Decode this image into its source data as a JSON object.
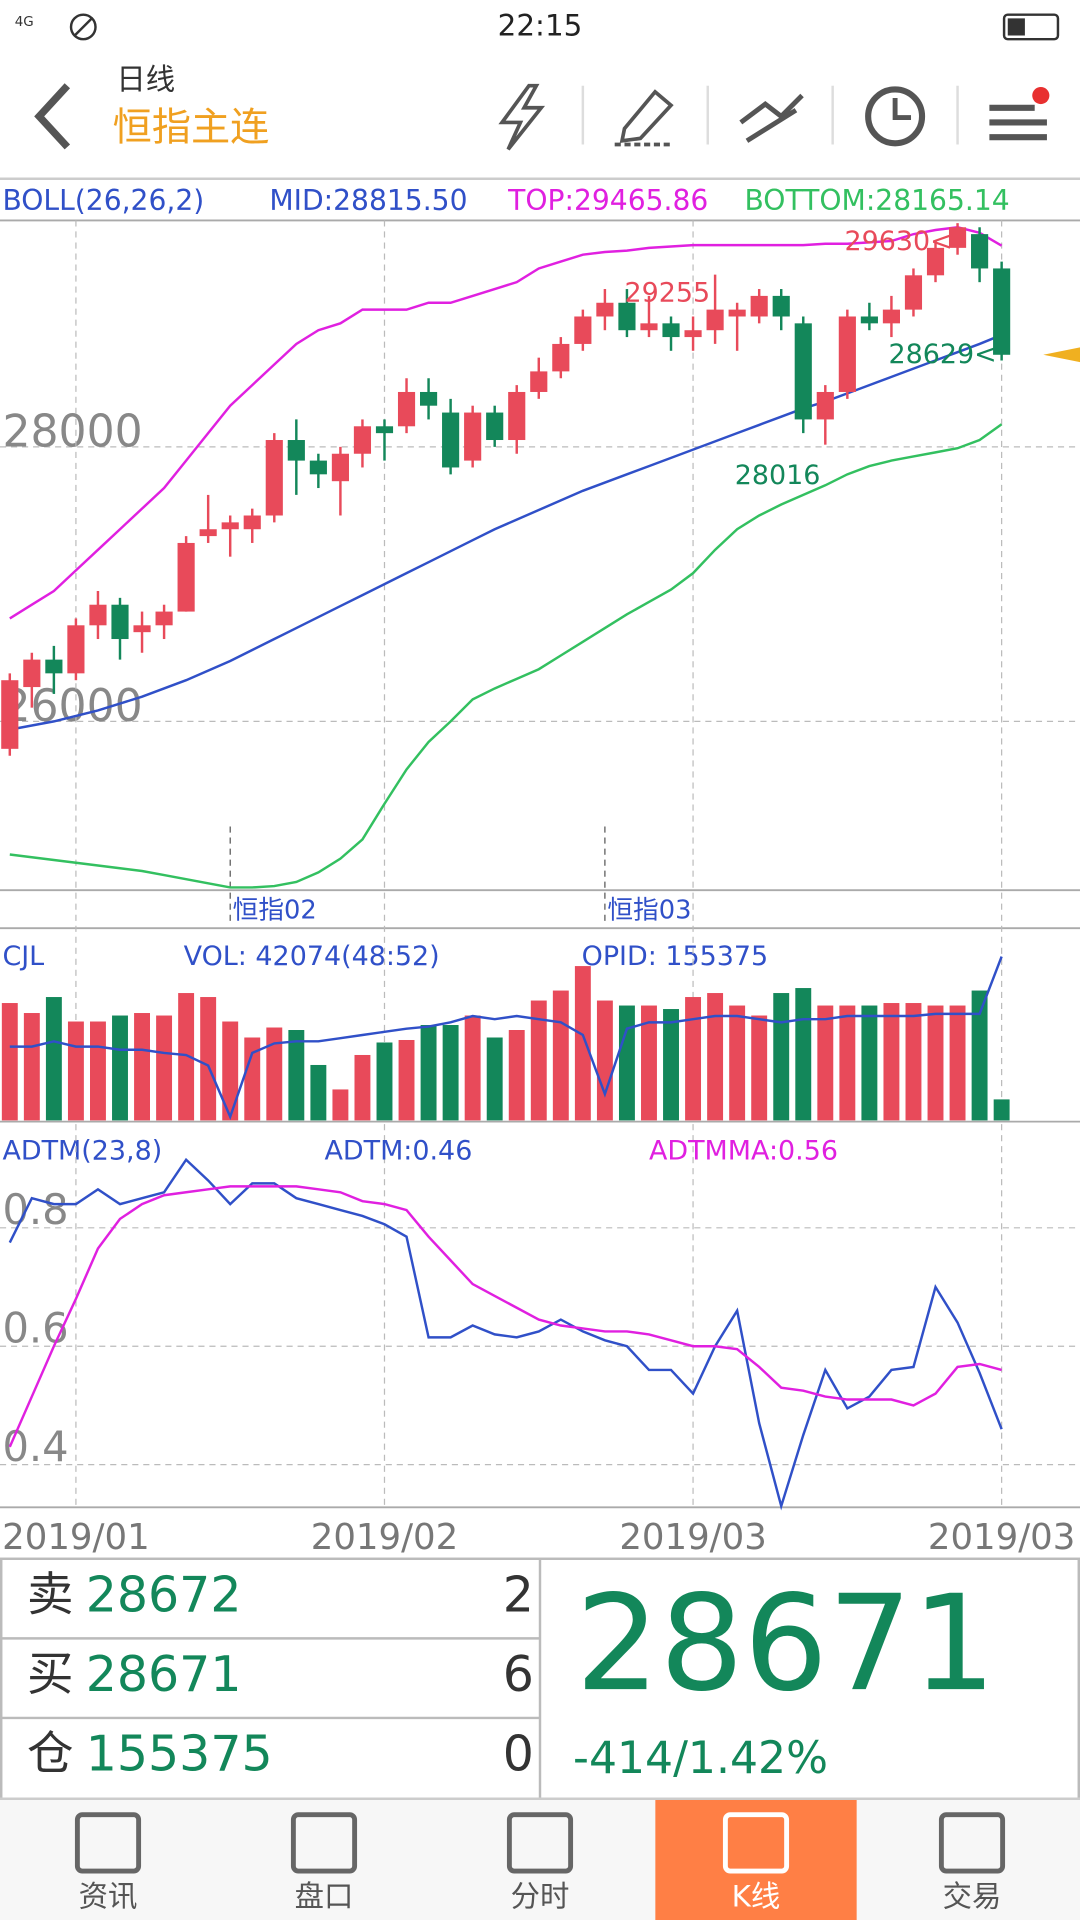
{
  "status_bar": {
    "network": "4G",
    "time": "22:15"
  },
  "header": {
    "period": "日线",
    "symbol": "恒指主连"
  },
  "price_chart": {
    "type": "candlestick",
    "indicator": "BOLL(26,26,2)",
    "up_color": "#e84a5a",
    "down_color": "#13875a",
    "ylim": [
      24770,
      29650
    ],
    "yticks": [
      26000,
      28000
    ],
    "grid": true,
    "categories": [
      null,
      null,
      null,
      "2019/01",
      null,
      null,
      null,
      null,
      null,
      null,
      null,
      null,
      null,
      null,
      null,
      null,
      null,
      "2019/02",
      null,
      null,
      null,
      null,
      null,
      null,
      null,
      null,
      null,
      null,
      null,
      null,
      null,
      "2019/03",
      null,
      null,
      null,
      null,
      null,
      null,
      null,
      null,
      null,
      null,
      null,
      null,
      null,
      "2019/03"
    ],
    "contracts": [
      null,
      null,
      null,
      null,
      null,
      null,
      null,
      null,
      null,
      null,
      "恒指02",
      null,
      null,
      null,
      null,
      null,
      null,
      null,
      null,
      null,
      null,
      null,
      null,
      null,
      null,
      null,
      null,
      "恒指03",
      null,
      null,
      null,
      null,
      null,
      null,
      null,
      null,
      null,
      null,
      null,
      null,
      null,
      null,
      null,
      null,
      null,
      null
    ],
    "high_labels": [
      null,
      null,
      null,
      null,
      null,
      null,
      null,
      null,
      null,
      null,
      null,
      null,
      null,
      null,
      null,
      null,
      null,
      null,
      null,
      null,
      null,
      null,
      null,
      null,
      null,
      null,
      null,
      null,
      null,
      null,
      null,
      null,
      "29255",
      null,
      null,
      null,
      null,
      null,
      null,
      null,
      null,
      null,
      null,
      "29630<",
      null,
      null
    ],
    "low_labels": [
      null,
      null,
      null,
      null,
      null,
      null,
      null,
      null,
      null,
      null,
      null,
      null,
      null,
      null,
      null,
      null,
      null,
      null,
      null,
      null,
      null,
      null,
      null,
      null,
      null,
      null,
      null,
      null,
      null,
      null,
      null,
      null,
      null,
      null,
      null,
      null,
      null,
      "28016",
      null,
      null,
      null,
      null,
      null,
      null,
      null,
      "28629<"
    ],
    "candles": [
      [
        25800,
        26350,
        25750,
        26300
      ],
      [
        26250,
        26500,
        26100,
        26450
      ],
      [
        26450,
        26550,
        26200,
        26350
      ],
      [
        26350,
        26750,
        26300,
        26700
      ],
      [
        26700,
        26950,
        26600,
        26850
      ],
      [
        26850,
        26900,
        26450,
        26600
      ],
      [
        26650,
        26800,
        26500,
        26700
      ],
      [
        26700,
        26850,
        26600,
        26800
      ],
      [
        26800,
        27350,
        26800,
        27300
      ],
      [
        27350,
        27650,
        27300,
        27400
      ],
      [
        27400,
        27500,
        27200,
        27450
      ],
      [
        27400,
        27550,
        27300,
        27500
      ],
      [
        27500,
        28100,
        27450,
        28050
      ],
      [
        28050,
        28200,
        27650,
        27900
      ],
      [
        27900,
        27950,
        27700,
        27800
      ],
      [
        27750,
        28000,
        27500,
        27950
      ],
      [
        27950,
        28200,
        27850,
        28150
      ],
      [
        28150,
        28200,
        27900,
        28100
      ],
      [
        28150,
        28500,
        28100,
        28400
      ],
      [
        28400,
        28500,
        28200,
        28300
      ],
      [
        28250,
        28350,
        27800,
        27850
      ],
      [
        27900,
        28300,
        27850,
        28250
      ],
      [
        28250,
        28300,
        28000,
        28050
      ],
      [
        28050,
        28450,
        27950,
        28400
      ],
      [
        28400,
        28650,
        28350,
        28550
      ],
      [
        28550,
        28800,
        28500,
        28750
      ],
      [
        28750,
        29000,
        28700,
        28950
      ],
      [
        28950,
        29150,
        28850,
        29050
      ],
      [
        29050,
        29150,
        28800,
        28850
      ],
      [
        28850,
        29100,
        28800,
        28900
      ],
      [
        28900,
        28950,
        28700,
        28800
      ],
      [
        28800,
        28950,
        28700,
        28850
      ],
      [
        28850,
        29255,
        28750,
        29000
      ],
      [
        28950,
        29050,
        28700,
        29000
      ],
      [
        28950,
        29150,
        28900,
        29100
      ],
      [
        29100,
        29150,
        28850,
        28950
      ],
      [
        28900,
        28950,
        28100,
        28200
      ],
      [
        28200,
        28450,
        28016,
        28400
      ],
      [
        28400,
        29000,
        28350,
        28950
      ],
      [
        28950,
        29050,
        28850,
        28900
      ],
      [
        28900,
        29100,
        28800,
        29000
      ],
      [
        29000,
        29300,
        28950,
        29250
      ],
      [
        29250,
        29500,
        29200,
        29450
      ],
      [
        29450,
        29630,
        29400,
        29600
      ],
      [
        29550,
        29600,
        29200,
        29300
      ],
      [
        29300,
        29350,
        28629,
        28671
      ]
    ],
    "series": [
      {
        "label": "MID:28815.50",
        "color": "#3050c8",
        "values": [
          25940,
          25970,
          26000,
          26040,
          26080,
          26130,
          26180,
          26240,
          26300,
          26370,
          26440,
          26520,
          26600,
          26680,
          26760,
          26840,
          26920,
          27000,
          27080,
          27160,
          27240,
          27320,
          27400,
          27470,
          27540,
          27610,
          27680,
          27740,
          27800,
          27860,
          27920,
          27980,
          28040,
          28100,
          28160,
          28220,
          28280,
          28330,
          28390,
          28450,
          28510,
          28570,
          28630,
          28690,
          28750,
          28815.5
        ]
      },
      {
        "label": "TOP:29465.86",
        "color": "#e020e0",
        "values": [
          26750,
          26850,
          26950,
          27100,
          27250,
          27400,
          27550,
          27700,
          27900,
          28100,
          28300,
          28450,
          28600,
          28750,
          28850,
          28900,
          29000,
          29000,
          29000,
          29050,
          29050,
          29100,
          29150,
          29200,
          29300,
          29350,
          29400,
          29420,
          29430,
          29450,
          29460,
          29470,
          29470,
          29470,
          29470,
          29470,
          29470,
          29480,
          29480,
          29490,
          29500,
          29550,
          29580,
          29600,
          29560,
          29465.86
        ]
      },
      {
        "label": "BOTTOM:28165.14",
        "color": "#33c060",
        "values": [
          25030,
          25010,
          24990,
          24970,
          24950,
          24930,
          24910,
          24880,
          24850,
          24820,
          24790,
          24790,
          24800,
          24830,
          24900,
          25000,
          25140,
          25400,
          25650,
          25850,
          26000,
          26160,
          26240,
          26310,
          26380,
          26480,
          26580,
          26680,
          26780,
          26870,
          26960,
          27080,
          27250,
          27400,
          27500,
          27580,
          27650,
          27720,
          27800,
          27860,
          27900,
          27930,
          27960,
          27990,
          28050,
          28165.14
        ]
      }
    ]
  },
  "volume_chart": {
    "type": "bar",
    "indicator": "CJL",
    "vol_label": "VOL: 42074(48:52)",
    "ylim": [
      0,
      380000
    ],
    "values": [
      235000,
      215000,
      247000,
      198000,
      198000,
      210000,
      215000,
      210000,
      255000,
      247000,
      198000,
      166000,
      186000,
      181000,
      111000,
      62000,
      131000,
      156000,
      161000,
      191000,
      191000,
      210000,
      166000,
      181000,
      240000,
      260000,
      309000,
      240000,
      230000,
      230000,
      223000,
      247000,
      255000,
      230000,
      210000,
      255000,
      265000,
      230000,
      230000,
      230000,
      235000,
      235000,
      230000,
      230000,
      260000,
      42074
    ],
    "opid": {
      "label": "OPID: 155375",
      "color": "#3050c8",
      "axis": "y2",
      "values": [
        70000,
        70000,
        75000,
        70000,
        70000,
        67000,
        67000,
        64000,
        62000,
        52000,
        3500,
        64000,
        73000,
        75000,
        75000,
        78000,
        81000,
        84000,
        87000,
        89000,
        93000,
        99000,
        96000,
        99000,
        96000,
        93000,
        81000,
        25000,
        87000,
        93000,
        93000,
        96000,
        99000,
        99000,
        96000,
        93000,
        96000,
        96000,
        99000,
        99000,
        99000,
        99000,
        101000,
        101000,
        101000,
        155375
      ]
    },
    "y2lim": [
      0,
      180000
    ]
  },
  "adtm_chart": {
    "type": "line",
    "indicator": "ADTM(23,8)",
    "ylim": [
      0.33,
      0.94
    ],
    "yticks": [
      0.4,
      0.6,
      0.8
    ],
    "series": [
      {
        "label": "ADTM:0.46",
        "color": "#3050c8",
        "values": [
          0.775,
          0.85,
          0.84,
          0.84,
          0.865,
          0.84,
          0.85,
          0.86,
          0.915,
          0.88,
          0.84,
          0.875,
          0.875,
          0.85,
          0.84,
          0.83,
          0.82,
          0.806,
          0.785,
          0.615,
          0.615,
          0.635,
          0.62,
          0.615,
          0.625,
          0.645,
          0.625,
          0.61,
          0.6,
          0.56,
          0.56,
          0.52,
          0.6,
          0.66,
          0.47,
          0.33,
          0.45,
          0.56,
          0.495,
          0.515,
          0.56,
          0.565,
          0.7,
          0.64,
          0.555,
          0.46
        ]
      },
      {
        "label": "ADTMMA:0.56",
        "color": "#e020e0",
        "values": [
          0.43,
          0.515,
          0.6,
          0.68,
          0.765,
          0.815,
          0.84,
          0.855,
          0.86,
          0.865,
          0.87,
          0.87,
          0.87,
          0.87,
          0.865,
          0.86,
          0.845,
          0.84,
          0.83,
          0.785,
          0.745,
          0.705,
          0.685,
          0.665,
          0.645,
          0.635,
          0.63,
          0.625,
          0.625,
          0.62,
          0.61,
          0.6,
          0.6,
          0.595,
          0.565,
          0.53,
          0.525,
          0.515,
          0.51,
          0.51,
          0.51,
          0.5,
          0.52,
          0.565,
          0.57,
          0.56
        ]
      }
    ]
  },
  "quote": {
    "rows": [
      {
        "label": "卖",
        "price": 28672,
        "qty": 2
      },
      {
        "label": "买",
        "price": 28671,
        "qty": 6
      },
      {
        "label": "仓",
        "price": 155375,
        "qty": 0
      }
    ],
    "last": 28671,
    "change": "-414/1.42%"
  },
  "nav": {
    "items": [
      "资讯",
      "盘口",
      "分时",
      "K线",
      "交易"
    ],
    "active": 3,
    "active_color": "#ff7f45"
  }
}
